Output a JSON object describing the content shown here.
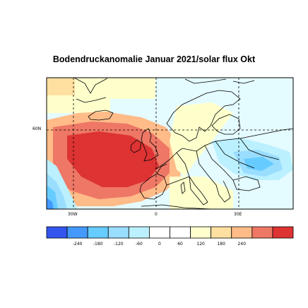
{
  "title": "Bodendruckanomalie Januar 2021/solar flux Okt",
  "map": {
    "region": "Europe / North Atlantic",
    "lon_labels": [
      "30W",
      "0",
      "30E"
    ],
    "lat_labels": [
      "60N"
    ],
    "gridlines": "dashed"
  },
  "legend": {
    "colors": [
      "#3355ee",
      "#4499ff",
      "#66ccff",
      "#99ddff",
      "#bbf0ff",
      "#ffffff",
      "#ffffff",
      "#ffffcc",
      "#ffe0a0",
      "#ffbb88",
      "#ee7766",
      "#dd3333"
    ],
    "labels": [
      "-240",
      "-180",
      "-120",
      "-60",
      "0",
      "60",
      "120",
      "180",
      "240"
    ]
  },
  "chart_data": {
    "type": "heatmap",
    "title": "Bodendruckanomalie Januar 2021/solar flux Okt",
    "scale": [
      -240,
      -180,
      -120,
      -60,
      0,
      60,
      120,
      180,
      240
    ],
    "features": [
      {
        "name": "positive anomaly center",
        "location": "North Atlantic west of British Isles",
        "value_range": [
          180,
          240
        ]
      },
      {
        "name": "negative anomaly",
        "location": "south-western edge of map",
        "value_range": [
          -180,
          -60
        ]
      },
      {
        "name": "weak negative anomaly",
        "location": "central and eastern Europe",
        "value_range": [
          -120,
          0
        ]
      }
    ]
  }
}
